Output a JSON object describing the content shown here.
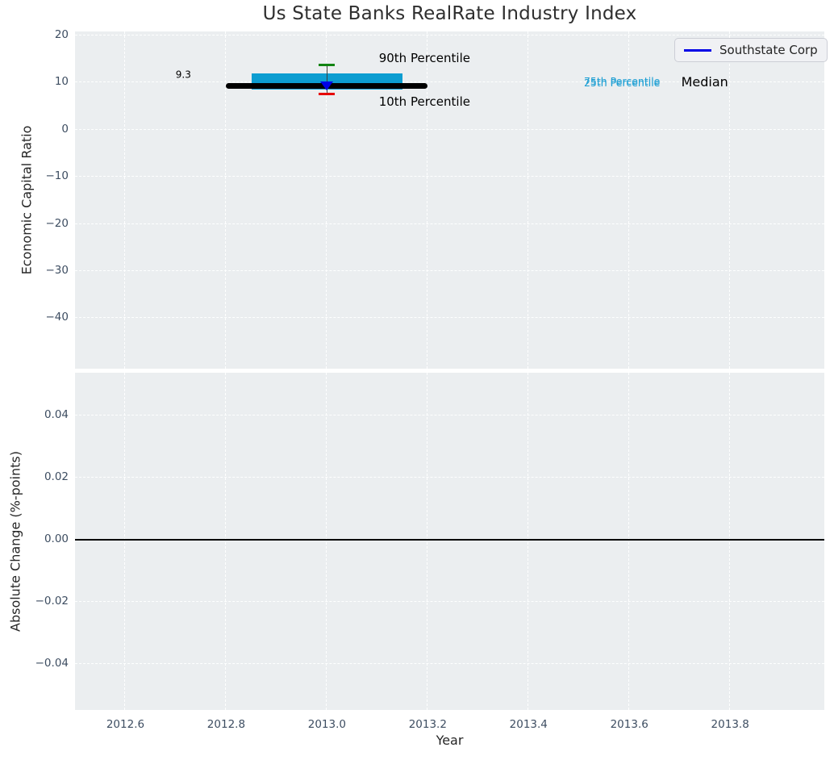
{
  "chart_data": [
    {
      "type": "boxplot",
      "panel": "economic-capital-ratio",
      "title": "Us State Banks RealRate Industry Index",
      "ylabel": "Economic Capital Ratio",
      "xlim": [
        2012.5,
        2013.987
      ],
      "ylim": [
        -50.7,
        20.8
      ],
      "yticks": [
        20,
        10,
        0,
        -10,
        -20,
        -30,
        -40
      ],
      "ytick_labels": [
        "20",
        "10",
        "0",
        "−10",
        "−20",
        "−30",
        "−40"
      ],
      "xticks": [
        2012.6,
        2012.8,
        2013.0,
        2013.2,
        2013.4,
        2013.6,
        2013.8
      ],
      "grid": {
        "style": "dashed",
        "color": "#ffffff",
        "on": true
      },
      "background": "#ebeef0",
      "legend": {
        "label": "Southstate Corp",
        "line_color": "#0000e6",
        "loc": "upper right"
      },
      "box": {
        "year": 2013.0,
        "median": 9.3,
        "p25": 8.5,
        "p75": 11.9,
        "p10": 7.5,
        "p90": 13.7,
        "median_span": [
          2012.8,
          2013.2
        ],
        "box_span": [
          2012.85,
          2013.15
        ],
        "cap_halfwidth": 0.016,
        "box_color": "#0c9dd1",
        "median_color": "#000000",
        "p90_color": "#128412",
        "p10_color": "#e60000",
        "whisker_color": "#3c3c3c"
      },
      "series": [
        {
          "name": "Southstate Corp",
          "x": [
            2013.0
          ],
          "y": [
            9.3
          ],
          "marker": "triangle-down",
          "color": "#0000e6"
        }
      ],
      "annotations": [
        {
          "text": "9.3",
          "x": 2012.715,
          "y": 11.5,
          "align": "center",
          "color": "#000000",
          "size": 12
        },
        {
          "text": "90th Percentile",
          "x": 2013.103,
          "y": 15.1,
          "align": "left",
          "color": "#000000",
          "size": 15
        },
        {
          "text": "10th Percentile",
          "x": 2013.103,
          "y": 6.0,
          "align": "left",
          "color": "#000000",
          "size": 15
        },
        {
          "text": "75th Percentile",
          "x": 2013.51,
          "y": 10.25,
          "align": "left",
          "color": "#1b9ed3",
          "size": 12.5
        },
        {
          "text": "25th Percentile",
          "x": 2013.51,
          "y": 9.9,
          "align": "left",
          "color": "#1b9ed3",
          "size": 12.5
        },
        {
          "text": "Median",
          "x": 2013.703,
          "y": 9.95,
          "align": "left",
          "color": "#000000",
          "size": 16
        }
      ]
    },
    {
      "type": "line",
      "panel": "absolute-change",
      "ylabel": "Absolute Change (%-points)",
      "xlabel": "Year",
      "xlim": [
        2012.5,
        2013.987
      ],
      "ylim": [
        -0.0548,
        0.0537
      ],
      "yticks": [
        0.04,
        0.02,
        0.0,
        -0.02,
        -0.04
      ],
      "ytick_labels": [
        "0.04",
        "0.02",
        "0.00",
        "−0.02",
        "−0.04"
      ],
      "xticks": [
        2012.6,
        2012.8,
        2013.0,
        2013.2,
        2013.4,
        2013.6,
        2013.8
      ],
      "xtick_labels": [
        "2012.6",
        "2012.8",
        "2013.0",
        "2013.2",
        "2013.4",
        "2013.6",
        "2013.8"
      ],
      "grid": {
        "style": "dashed",
        "color": "#ffffff",
        "on": true
      },
      "background": "#ebeef0",
      "zero_line": {
        "y": 0.0,
        "color": "#000000"
      },
      "series": []
    }
  ]
}
